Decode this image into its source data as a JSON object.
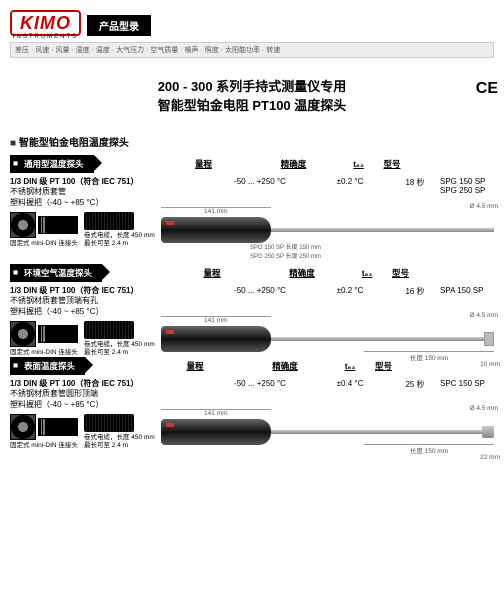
{
  "brand": {
    "name": "KIMO",
    "sub": "INSTRUMENTS"
  },
  "header": {
    "tab": "产品型录",
    "categories": "差压 · 风速 · 风量 · 湿度 · 温度 · 大气压力 · 空气质量 · 噪声 · 照度 · 太阳能功率 · 转速"
  },
  "title": {
    "line1_a": "200 - 300",
    "line1_b": "系列手持式测量仪专用",
    "line2": "智能型铂金电阻 PT100 温度探头",
    "ce": "CE"
  },
  "section_title": "智能型铂金电阻温度探头",
  "cols": {
    "range": "量程",
    "accuracy": "精确度",
    "t63": "t₆₃",
    "model": "型号"
  },
  "conn": {
    "fixed": "固定式 mini-DIN 连接头",
    "cable_l1": "卷式电缆，长度 450 mm",
    "cable_l2": "最长可至   2.4 m"
  },
  "dims": {
    "handle": "141 mm",
    "dia": "Ø 4.5 mm"
  },
  "probes": [
    {
      "bar": "通用型温度探头",
      "spec_t": "1/3 DIN 级 PT 100（符合 IEC 751）",
      "spec_l1": "不锈钢材质套管",
      "spec_l2": "塑料握把（-40 ~ +85 °C）",
      "range": "-50 ... +250 °C",
      "accuracy": "±0.2 °C",
      "t63": "18 秒",
      "model_l1": "SPG 150 SP",
      "model_l2": "SPG 250 SP",
      "tip": "point",
      "shaft_dim": "",
      "note_l1": "SPG 150 SP  长度 150 mm",
      "note_l2": "SPG 250 SP  长度 250 mm"
    },
    {
      "bar": "环境空气温度探头",
      "spec_t": "1/3 DIN 级 PT 100（符合 IEC 751）",
      "spec_l1": "不锈钢材质套管顶端有孔",
      "spec_l2": "塑料握把（-40 ~ +85 °C）",
      "range": "-50 ... +250 °C",
      "accuracy": "±0.2 °C",
      "t63": "16 秒",
      "model_l1": "SPA 150 SP",
      "model_l2": "",
      "tip": "fan",
      "shaft_dim": "长度 150 mm",
      "tip_dim": "10 mm"
    },
    {
      "bar": "表面温度探头",
      "spec_t": "1/3 DIN 级 PT 100（符合 IEC 751）",
      "spec_l1": "不锈钢材质套管圆形顶端",
      "spec_l2": "塑料握把（-40 ~ +85 °C）",
      "range": "-50 ... +250 °C",
      "accuracy": "±0.4 °C",
      "t63": "25 秒",
      "model_l1": "SPC 150 SP",
      "model_l2": "",
      "tip": "flat",
      "shaft_dim": "长度 150 mm",
      "tip_dim": "22 mm"
    }
  ]
}
